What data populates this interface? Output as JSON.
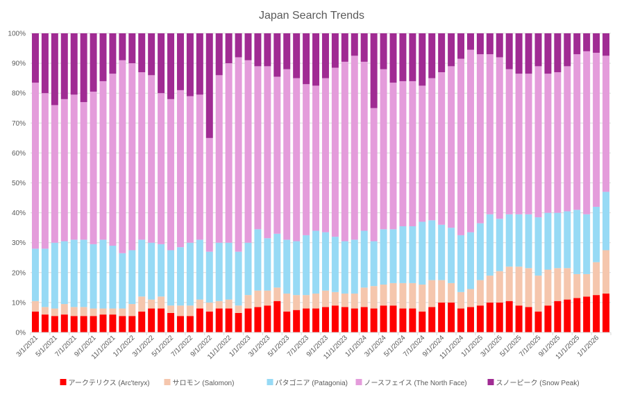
{
  "chart_data": {
    "type": "bar",
    "stacked": "percent",
    "title": "Japan Search Trends",
    "xlabel": "",
    "ylabel": "",
    "ylim": [
      0,
      100
    ],
    "y_tick_labels": [
      "0%",
      "10%",
      "20%",
      "30%",
      "40%",
      "50%",
      "60%",
      "70%",
      "80%",
      "90%",
      "100%"
    ],
    "grid": true,
    "legend_position": "bottom",
    "categories": [
      "3/1/2021",
      "4/1/2021",
      "5/1/2021",
      "6/1/2021",
      "7/1/2021",
      "8/1/2021",
      "9/1/2021",
      "10/1/2021",
      "11/1/2021",
      "12/1/2021",
      "1/1/2022",
      "2/1/2022",
      "3/1/2022",
      "4/1/2022",
      "5/1/2022",
      "6/1/2022",
      "7/1/2022",
      "8/1/2022",
      "9/1/2022",
      "10/1/2022",
      "11/1/2022",
      "12/1/2022",
      "1/1/2023",
      "2/1/2023",
      "3/1/2023",
      "4/1/2023",
      "5/1/2023",
      "6/1/2023",
      "7/1/2023",
      "8/1/2023",
      "9/1/2023",
      "10/1/2023",
      "11/1/2023",
      "12/1/2023",
      "1/1/2024",
      "2/1/2024",
      "3/1/2024",
      "4/1/2024",
      "5/1/2024",
      "6/1/2024",
      "7/1/2024",
      "8/1/2024",
      "9/1/2024",
      "10/1/2024",
      "11/1/2024",
      "12/1/2024",
      "1/1/2025",
      "2/1/2025",
      "3/1/2025",
      "4/1/2025",
      "5/1/2025",
      "6/1/2025",
      "7/1/2025",
      "8/1/2025",
      "9/1/2025",
      "10/1/2025",
      "11/1/2025",
      "12/1/2025",
      "1/1/2026",
      "2/1/2026"
    ],
    "x_tick_labels": [
      "3/1/2021",
      "5/1/2021",
      "7/1/2021",
      "9/1/2021",
      "11/1/2021",
      "1/1/2022",
      "3/1/2022",
      "5/1/2022",
      "7/1/2022",
      "9/1/2022",
      "11/1/2022",
      "1/1/2023",
      "3/1/2023",
      "5/1/2023",
      "7/1/2023",
      "9/1/2023",
      "11/1/2023",
      "1/1/2024",
      "3/1/2024",
      "5/1/2024",
      "7/1/2024",
      "9/1/2024",
      "11/1/2024",
      "1/1/2025",
      "3/1/2025",
      "5/1/2025",
      "7/1/2025",
      "9/1/2025",
      "11/1/2025",
      "1/1/2026"
    ],
    "series": [
      {
        "name": "アークテリクス (Arc'teryx)",
        "color": "#ff0000",
        "values": [
          7,
          6,
          5.5,
          6,
          5.5,
          5.5,
          5.5,
          6,
          6,
          5.5,
          5.5,
          7,
          8,
          8,
          6.5,
          5.5,
          5.5,
          8,
          7,
          8,
          8,
          6.5,
          8,
          8.5,
          9,
          10.5,
          7,
          7.5,
          8,
          8,
          8.5,
          9,
          8.5,
          8,
          8.5,
          8,
          9,
          9,
          8,
          8,
          7,
          8.5,
          10,
          10,
          8,
          8.5,
          9,
          10,
          10,
          10.5,
          9,
          8.5,
          7,
          9,
          10.5,
          11,
          11.5,
          12,
          12.5,
          13
        ]
      },
      {
        "name": "サロモン (Salomon)",
        "color": "#f5c6ad",
        "values": [
          3.5,
          2.5,
          2.5,
          3.5,
          3,
          3,
          2.5,
          2,
          2,
          2.5,
          4,
          5,
          3,
          4,
          2.5,
          3.5,
          3.5,
          3,
          3,
          2.5,
          3,
          2.5,
          4.5,
          5.5,
          5,
          4.5,
          6,
          5,
          4.5,
          5,
          5.5,
          4.5,
          4.5,
          5,
          6.5,
          7.5,
          7,
          7.5,
          8.5,
          8.5,
          9,
          9,
          7.5,
          6.5,
          5.5,
          6,
          8.5,
          9,
          10.5,
          11.5,
          13,
          13,
          12,
          12,
          11,
          10.5,
          8,
          7.5,
          11,
          14.5
        ]
      },
      {
        "name": "パタゴニア (Patagonia)",
        "color": "#97daf5",
        "values": [
          17.5,
          19.5,
          22,
          21,
          22.5,
          22.5,
          21.5,
          23,
          21,
          18.5,
          18,
          19,
          19,
          17.5,
          18.5,
          19.5,
          21,
          20,
          17,
          19.5,
          19,
          18,
          17.5,
          20.5,
          17.5,
          18,
          18,
          18,
          20,
          21,
          19.5,
          18.5,
          17.5,
          18,
          19,
          15,
          18.5,
          18,
          19,
          19,
          21,
          20,
          18.5,
          18.5,
          19,
          19,
          19,
          20.5,
          17.5,
          17.5,
          17.5,
          18,
          19.5,
          19,
          18.5,
          19,
          21.5,
          20,
          18.5,
          19.5
        ]
      },
      {
        "name": "ノースフェイス (The North Face)",
        "color": "#e49cdb",
        "values": [
          55.5,
          52,
          46,
          47.5,
          48.5,
          46,
          51,
          53,
          57.5,
          64.5,
          62.5,
          56,
          56,
          50.5,
          50.5,
          52.5,
          49,
          48.5,
          38,
          56,
          60,
          65,
          61,
          54.5,
          57.5,
          52.5,
          57,
          54.5,
          50.5,
          48.5,
          51.5,
          56.5,
          60,
          61.5,
          56.5,
          44.5,
          53.5,
          49,
          48.5,
          48.5,
          45.5,
          47.5,
          51,
          54,
          59,
          61,
          56.5,
          53.5,
          54,
          48.5,
          47,
          47,
          50.5,
          46.5,
          47,
          48.5,
          52,
          54.5,
          51.5,
          45.5
        ]
      },
      {
        "name": "スノーピーク (Snow Peak)",
        "color": "#a02b93",
        "values": [
          16.5,
          20,
          24,
          22,
          20.5,
          23,
          19.5,
          16,
          13.5,
          9,
          10,
          13,
          14,
          20,
          22,
          19,
          21,
          20.5,
          35,
          14,
          10,
          8,
          9,
          11,
          11,
          14.5,
          12,
          15,
          17,
          17.5,
          15,
          11.5,
          9.5,
          7.5,
          9.5,
          25,
          12,
          16.5,
          16,
          16,
          17.5,
          15,
          13,
          11,
          8.5,
          5.5,
          7,
          7,
          8,
          12,
          13.5,
          13.5,
          11,
          13.5,
          13,
          11,
          7,
          6,
          6.5,
          7.5
        ]
      }
    ]
  }
}
